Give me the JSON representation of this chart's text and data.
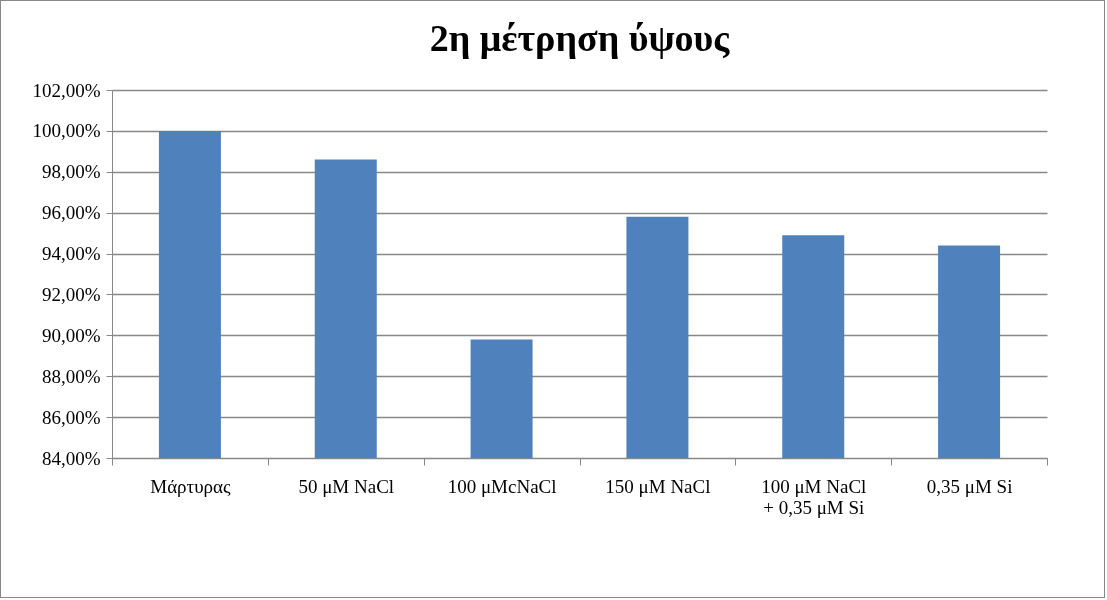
{
  "chart_data": {
    "type": "bar",
    "title": "2η μέτρηση ύψους",
    "categories": [
      "Μάρτυρας",
      "50 μM NaCl",
      "100 μMcNaCl",
      "150 μM NaCl",
      "100 μM NaCl + 0,35 μM Si",
      "0,35 μM Si"
    ],
    "values": [
      100,
      98.6,
      89.8,
      95.8,
      94.9,
      94.4
    ],
    "color": "#4f81bd",
    "ylim": [
      84,
      102
    ],
    "yticks": [
      {
        "value": 84,
        "label": "84,00%"
      },
      {
        "value": 86,
        "label": "86,00%"
      },
      {
        "value": 88,
        "label": "88,00%"
      },
      {
        "value": 90,
        "label": "90,00%"
      },
      {
        "value": 92,
        "label": "92,00%"
      },
      {
        "value": 94,
        "label": "94,00%"
      },
      {
        "value": 96,
        "label": "96,00%"
      },
      {
        "value": 98,
        "label": "98,00%"
      },
      {
        "value": 100,
        "label": "100,00%"
      },
      {
        "value": 102,
        "label": "102,00%"
      }
    ],
    "grid": "y"
  }
}
